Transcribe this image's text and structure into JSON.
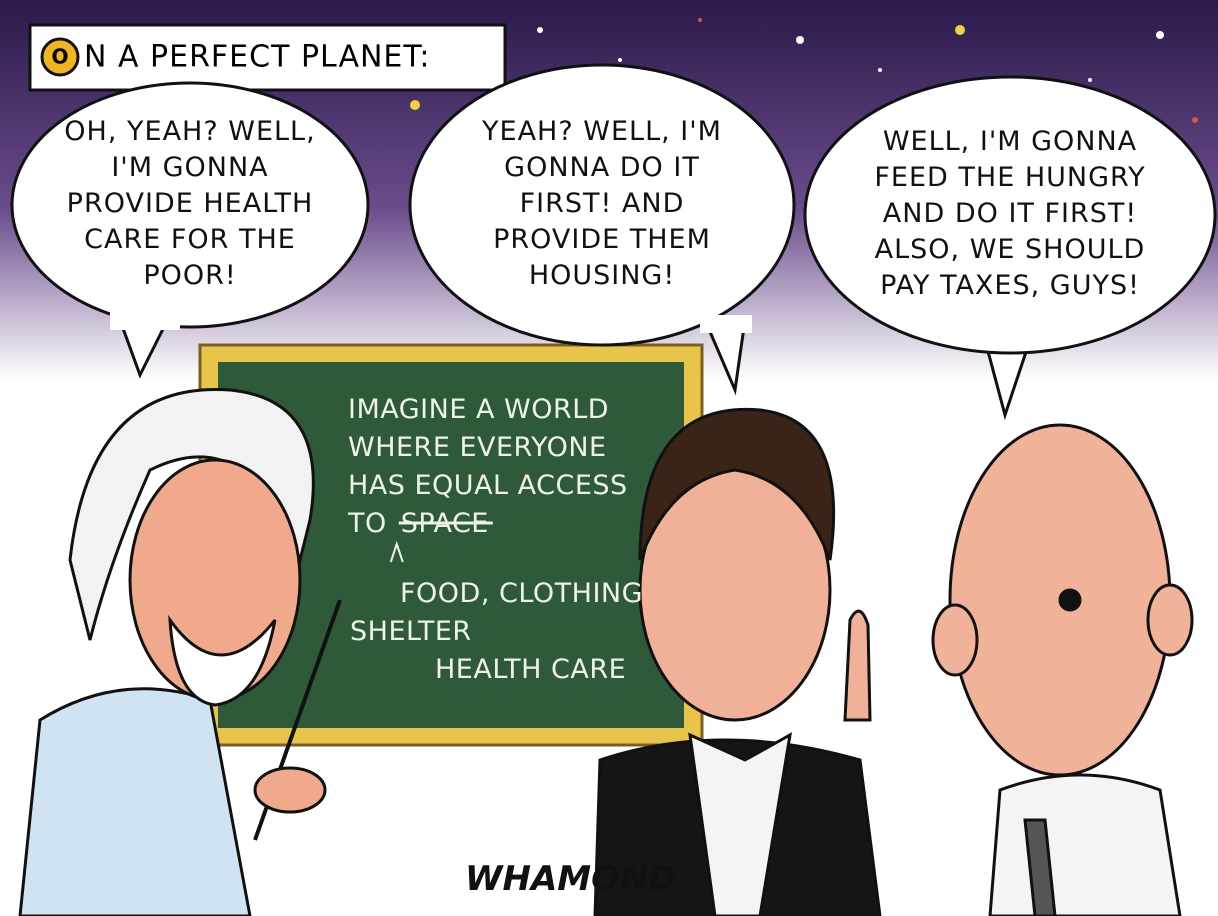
{
  "caption": {
    "initial": "O",
    "text": "N A PERFECT PLANET:"
  },
  "bubbles": [
    {
      "lines": [
        "OH, YEAH? WELL,",
        "I'M GONNA",
        "PROVIDE HEALTH",
        "CARE FOR THE",
        "POOR!"
      ]
    },
    {
      "lines": [
        "YEAH? WELL, I'M",
        "GONNA DO IT",
        "FIRST! AND",
        "PROVIDE THEM",
        "HOUSING!"
      ]
    },
    {
      "lines": [
        "WELL, I'M GONNA",
        "FEED THE HUNGRY",
        "AND DO IT FIRST!",
        "ALSO, WE SHOULD",
        "PAY TAXES, GUYS!"
      ]
    }
  ],
  "chalkboard": {
    "lines": [
      "IMAGINE A WORLD",
      "WHERE EVERYONE",
      "HAS EQUAL ACCESS",
      "TO"
    ],
    "struck": "SPACE",
    "insert": [
      "FOOD, CLOTHING",
      "SHELTER",
      "HEALTH CARE"
    ]
  },
  "signature": "WHAMOND"
}
